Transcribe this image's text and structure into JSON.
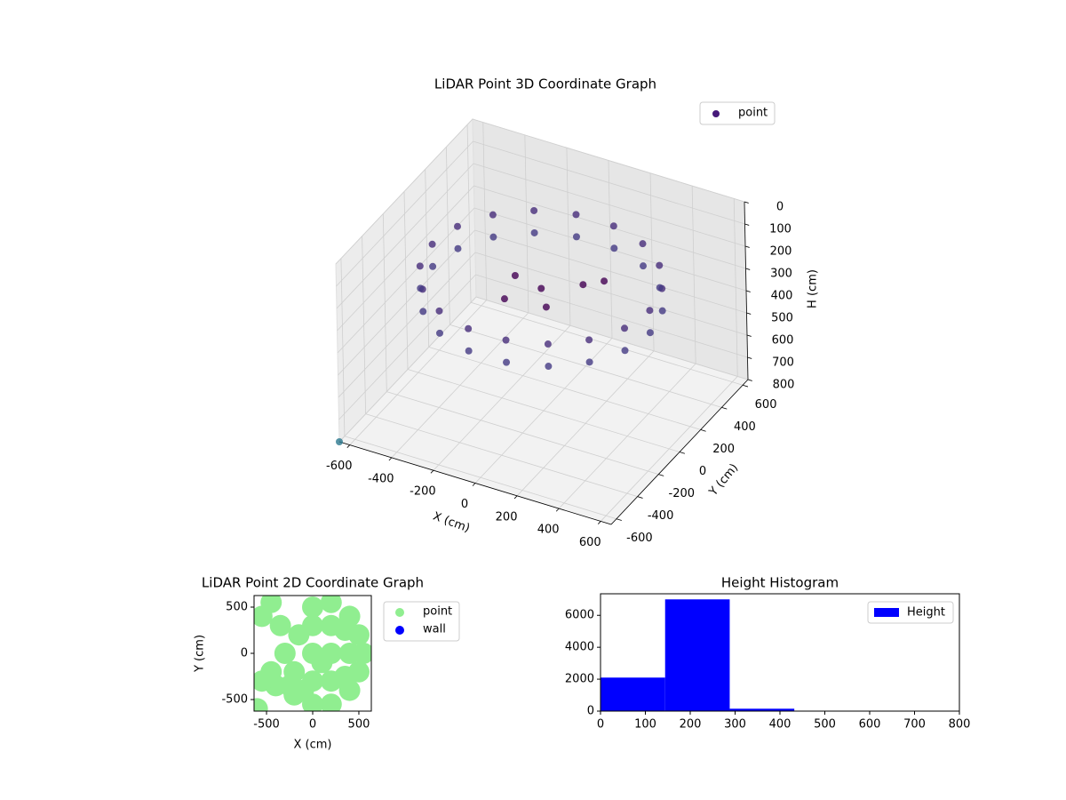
{
  "chart_data": [
    {
      "type": "scatter3d",
      "title": "LiDAR Point 3D Coordinate Graph",
      "xlabel": "X (cm)",
      "ylabel": "Y (cm)",
      "zlabel": "H (cm)",
      "xlim": [
        -650,
        650
      ],
      "ylim": [
        -650,
        650
      ],
      "zlim": [
        0,
        800
      ],
      "z_inverted": true,
      "xticks": [
        -600,
        -400,
        -200,
        0,
        200,
        400,
        600
      ],
      "yticks": [
        -600,
        -400,
        -200,
        0,
        200,
        400,
        600
      ],
      "zticks": [
        0,
        100,
        200,
        300,
        400,
        500,
        600,
        700,
        800
      ],
      "grid": true,
      "legend": "upper right",
      "series": [
        {
          "name": "point",
          "color": "#46197a",
          "x": [
            520,
            489,
            398,
            260,
            90,
            -90,
            -260,
            -398,
            -489,
            -520,
            -489,
            -398,
            -260,
            -90,
            90,
            260,
            398,
            489,
            520,
            489,
            398,
            260,
            90,
            -90,
            -260,
            -398,
            -489,
            -520,
            -489,
            -398,
            -260,
            -90,
            90,
            260,
            398,
            489,
            0,
            150,
            -150,
            100,
            -100,
            200,
            -650
          ],
          "y": [
            0,
            178,
            334,
            450,
            512,
            512,
            450,
            334,
            178,
            0,
            -178,
            -334,
            -450,
            -512,
            -512,
            -450,
            -334,
            -178,
            0,
            178,
            334,
            450,
            512,
            512,
            450,
            334,
            178,
            0,
            -178,
            -334,
            -450,
            -512,
            -512,
            -450,
            -334,
            -178,
            0,
            100,
            50,
            -150,
            -150,
            200,
            -650
          ],
          "z": [
            200,
            200,
            200,
            200,
            200,
            200,
            200,
            200,
            200,
            200,
            200,
            200,
            200,
            200,
            200,
            200,
            200,
            200,
            300,
            300,
            300,
            300,
            300,
            300,
            300,
            300,
            300,
            300,
            300,
            300,
            300,
            300,
            300,
            300,
            300,
            300,
            250,
            240,
            260,
            230,
            250,
            260,
            800
          ],
          "colors": [
            "#472d7b",
            "#472d7b",
            "#472d7b",
            "#472d7b",
            "#472d7b",
            "#472d7b",
            "#472d7b",
            "#472d7b",
            "#472d7b",
            "#472d7b",
            "#472d7b",
            "#472d7b",
            "#472d7b",
            "#472d7b",
            "#472d7b",
            "#472d7b",
            "#472d7b",
            "#472d7b",
            "#443983",
            "#443983",
            "#443983",
            "#443983",
            "#443983",
            "#443983",
            "#443983",
            "#443983",
            "#443983",
            "#443983",
            "#443983",
            "#443983",
            "#443983",
            "#443983",
            "#443983",
            "#443983",
            "#443983",
            "#443983",
            "#440154",
            "#440154",
            "#440154",
            "#440154",
            "#440154",
            "#440154",
            "#2a788e"
          ]
        }
      ]
    },
    {
      "type": "scatter",
      "title": "LiDAR Point 2D Coordinate Graph",
      "xlabel": "X (cm)",
      "ylabel": "Y (cm)",
      "xlim": [
        -635,
        635
      ],
      "ylim": [
        -625,
        625
      ],
      "xticks": [
        -500,
        0,
        500
      ],
      "yticks": [
        -500,
        0,
        500
      ],
      "legend": "outside right",
      "series": [
        {
          "name": "point",
          "color": "#90ee90",
          "x": [
            0,
            200,
            400,
            500,
            550,
            500,
            400,
            200,
            0,
            -200,
            -400,
            -550,
            -600,
            -550,
            -450,
            -350,
            -300,
            -200,
            -150,
            0,
            200,
            400,
            200,
            200,
            0,
            0,
            350,
            350,
            -100,
            100,
            -450,
            -250
          ],
          "y": [
            500,
            550,
            400,
            200,
            0,
            -200,
            -400,
            -550,
            -550,
            -450,
            -350,
            -300,
            -600,
            400,
            550,
            300,
            0,
            -200,
            200,
            0,
            0,
            0,
            300,
            -300,
            300,
            -300,
            250,
            -250,
            -400,
            -100,
            -200,
            -350
          ]
        },
        {
          "name": "wall",
          "color": "#0000ff",
          "x": [],
          "y": []
        }
      ]
    },
    {
      "type": "histogram",
      "title": "Height Histogram",
      "bins": [
        0,
        144,
        288,
        432,
        576,
        720,
        864
      ],
      "counts": [
        2100,
        7000,
        150,
        8,
        4,
        3
      ],
      "color": "#0000ff",
      "series_name": "Height",
      "xlim": [
        0,
        800
      ],
      "ylim": [
        0,
        7350
      ],
      "xticks": [
        0,
        100,
        200,
        300,
        400,
        500,
        600,
        700,
        800
      ],
      "yticks": [
        0,
        2000,
        4000,
        6000
      ],
      "legend": "upper right"
    }
  ]
}
